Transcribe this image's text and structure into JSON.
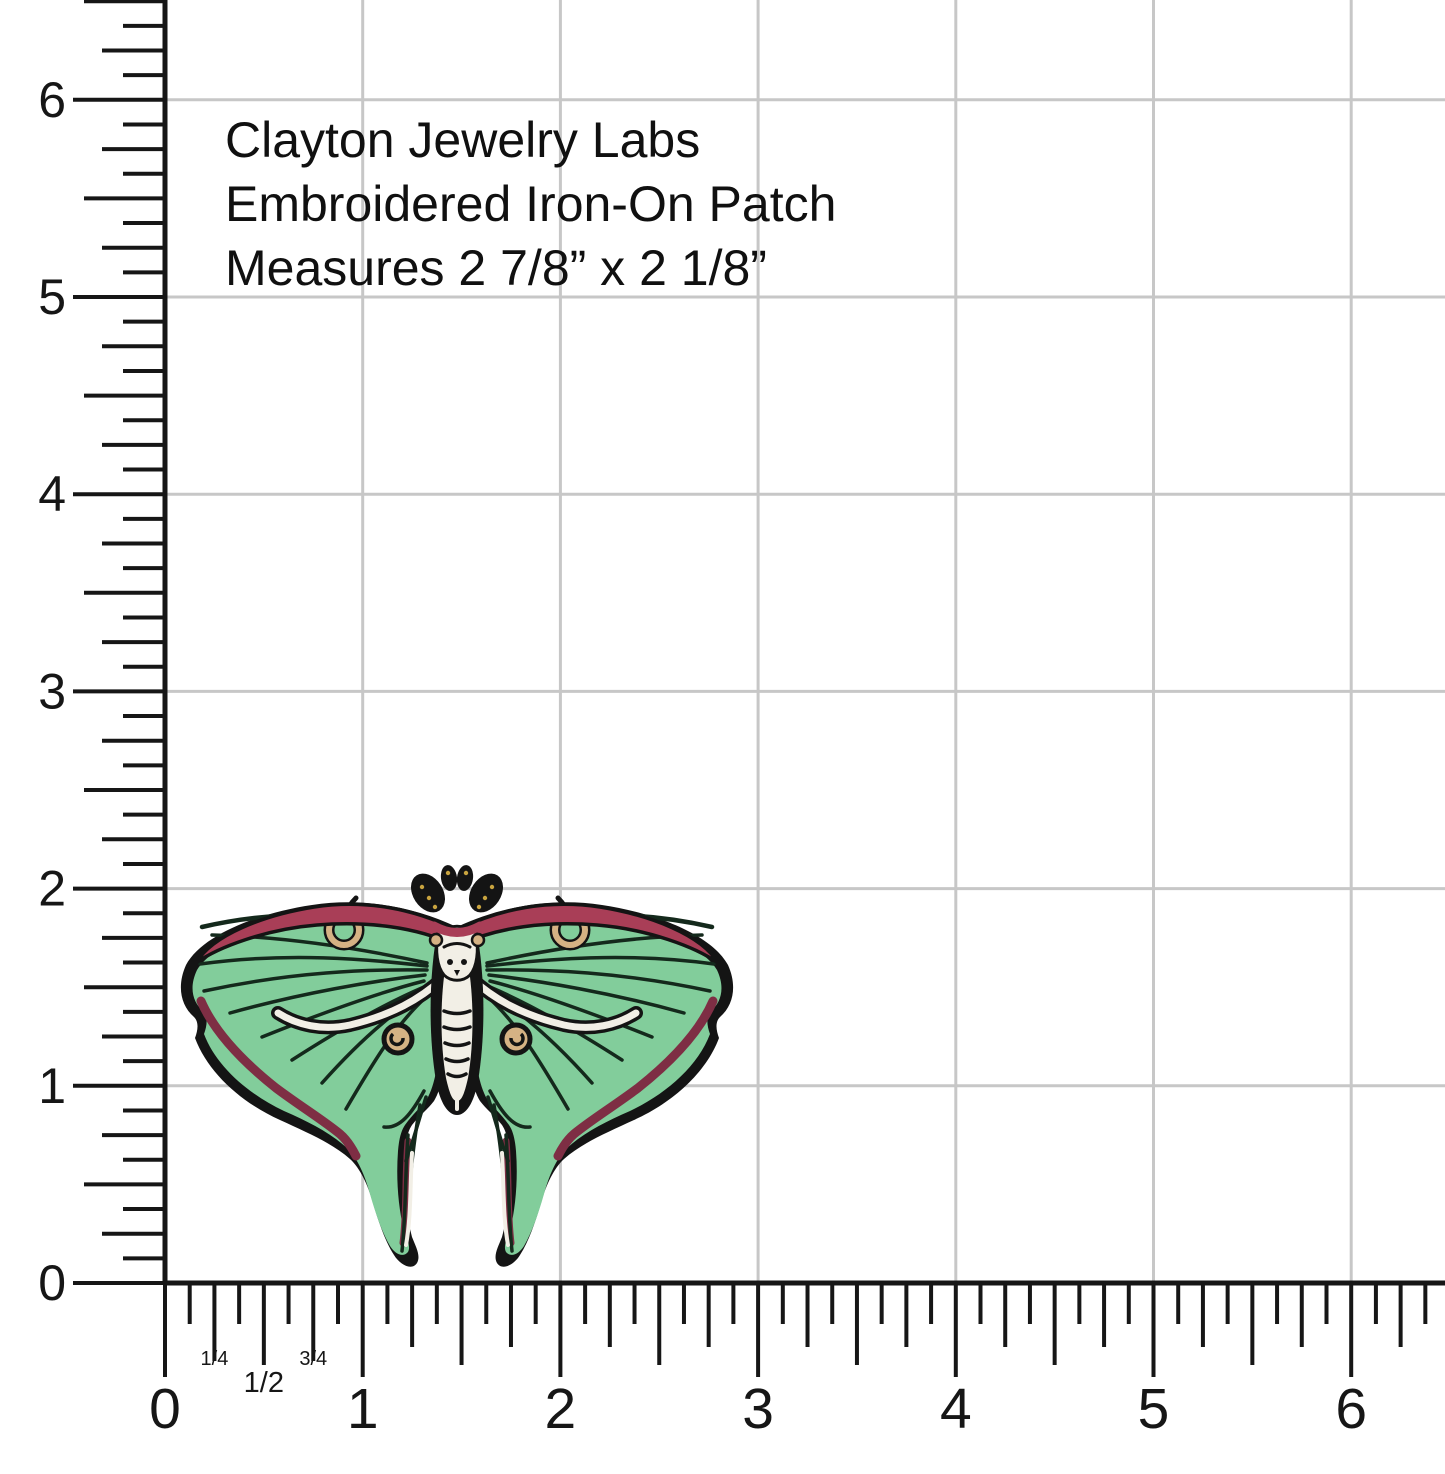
{
  "page": {
    "background": "#ffffff",
    "ink": "#161616",
    "grid_color": "#c7c7c7"
  },
  "product_label": {
    "line1": "Clayton Jewelry Labs",
    "line2": "Embroidered Iron-On Patch",
    "line3": "Measures 2 7/8” x 2 1/8”"
  },
  "horizontal_ruler": {
    "numbers": [
      "0",
      "1",
      "2",
      "3",
      "4",
      "5",
      "6"
    ],
    "fractions": [
      {
        "label": "1/4",
        "inch": 0.25
      },
      {
        "label": "1/2",
        "inch": 0.5
      },
      {
        "label": "3/4",
        "inch": 0.75
      }
    ]
  },
  "vertical_ruler": {
    "numbers": [
      "0",
      "1",
      "2",
      "3",
      "4",
      "5",
      "6"
    ]
  },
  "patch_colors": {
    "outline": "#141414",
    "green": "#82cd9b",
    "maroon": "#a93e57",
    "maroonDark": "#7e2e44",
    "cream": "#f2efe6",
    "tan": "#d5b284",
    "gold": "#c9a43f",
    "vein": "#14291c"
  }
}
